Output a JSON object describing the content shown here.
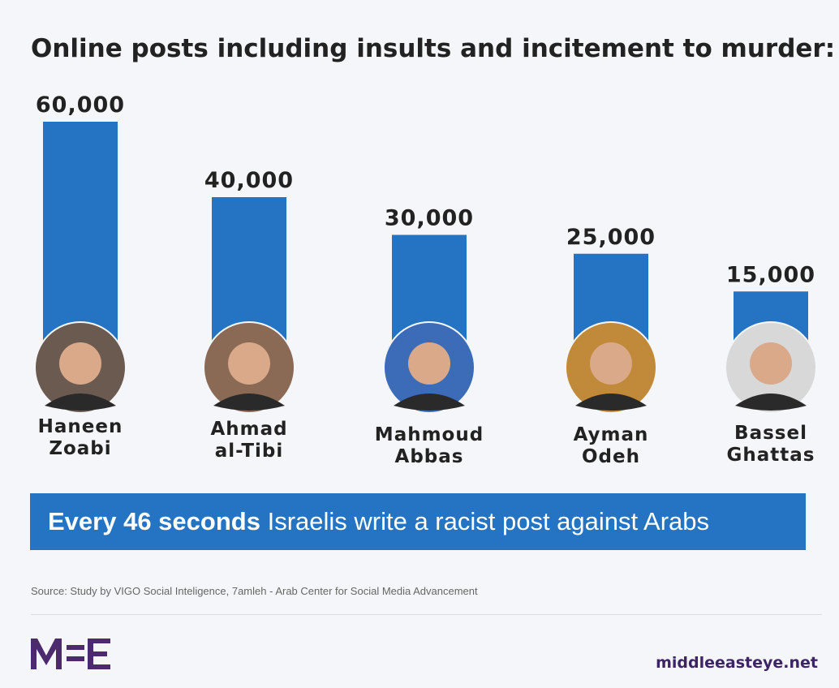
{
  "chart_data": {
    "type": "bar",
    "title": "Online posts including insults and incitement to murder:",
    "categories": [
      "Haneen Zoabi",
      "Ahmad al-Tibi",
      "Mahmoud Abbas",
      "Ayman Odeh",
      "Bassel Ghattas"
    ],
    "values": [
      60000,
      40000,
      30000,
      25000,
      15000
    ],
    "value_labels": [
      "60,000",
      "40,000",
      "30,000",
      "25,000",
      "15,000"
    ],
    "color": "#2474c3"
  },
  "banner": {
    "highlight": "Every 46 seconds",
    "text": "Israelis write a racist post against Arabs"
  },
  "source": "Source: Study by VIGO Social Inteligence, 7amleh - Arab Center for Social Media Advancement",
  "site": "middleeasteye.net"
}
